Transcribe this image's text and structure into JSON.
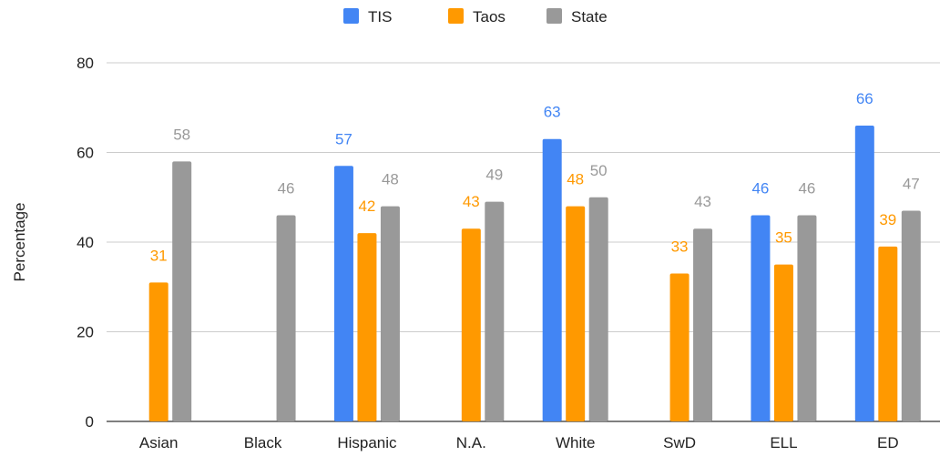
{
  "chart_data": {
    "type": "bar",
    "title": "",
    "xlabel": "",
    "ylabel": "Percentage",
    "ylim": [
      0,
      80
    ],
    "yticks": [
      0,
      20,
      40,
      60,
      80
    ],
    "grid": true,
    "legend_position": "top",
    "categories": [
      "Asian",
      "Black",
      "Hispanic",
      "N.A.",
      "White",
      "SwD",
      "ELL",
      "ED"
    ],
    "series": [
      {
        "name": "TIS",
        "color": "#4285f4",
        "values": [
          null,
          null,
          57,
          null,
          63,
          null,
          46,
          66
        ]
      },
      {
        "name": "Taos",
        "color": "#ff9900",
        "values": [
          31,
          null,
          42,
          43,
          48,
          33,
          35,
          39
        ]
      },
      {
        "name": "State",
        "color": "#999999",
        "values": [
          58,
          46,
          48,
          49,
          50,
          43,
          46,
          47
        ]
      }
    ]
  }
}
